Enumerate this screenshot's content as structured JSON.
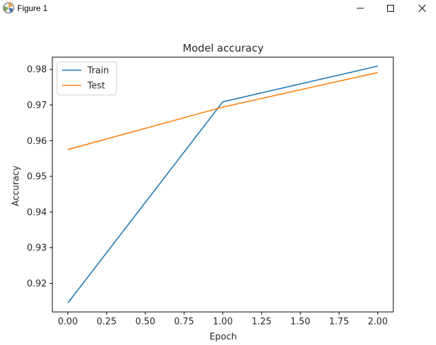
{
  "window": {
    "title": "Figure 1",
    "icons": {
      "app": "matplotlib-figure-icon",
      "minimize": "minimize-icon",
      "maximize": "maximize-icon",
      "close": "close-icon"
    }
  },
  "chart_data": {
    "type": "line",
    "title": "Model accuracy",
    "xlabel": "Epoch",
    "ylabel": "Accuracy",
    "x": [
      0,
      1,
      2
    ],
    "series": [
      {
        "name": "Train",
        "values": [
          0.9145,
          0.9709,
          0.9809
        ],
        "color": "#1f77b4"
      },
      {
        "name": "Test",
        "values": [
          0.9575,
          0.9694,
          0.9791
        ],
        "color": "#ff7f0e"
      }
    ],
    "xlim": [
      -0.1,
      2.1
    ],
    "ylim": [
      0.912,
      0.9834
    ],
    "xticks": [
      "0.00",
      "0.25",
      "0.50",
      "0.75",
      "1.00",
      "1.25",
      "1.50",
      "1.75",
      "2.00"
    ],
    "yticks": [
      "0.92",
      "0.93",
      "0.94",
      "0.95",
      "0.96",
      "0.97",
      "0.98"
    ],
    "grid": false,
    "legend": "upper left"
  }
}
